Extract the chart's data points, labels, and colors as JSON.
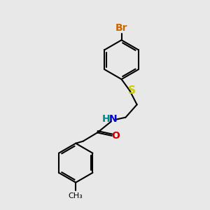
{
  "bg_color": "#e8e8e8",
  "bond_color": "#000000",
  "bond_width": 1.5,
  "atom_colors": {
    "Br": "#cc6600",
    "S": "#cccc00",
    "N": "#0000cc",
    "O": "#cc0000",
    "H": "#008888",
    "C": "#000000"
  },
  "font_size": 9,
  "fig_size": [
    3.0,
    3.0
  ],
  "dpi": 100
}
